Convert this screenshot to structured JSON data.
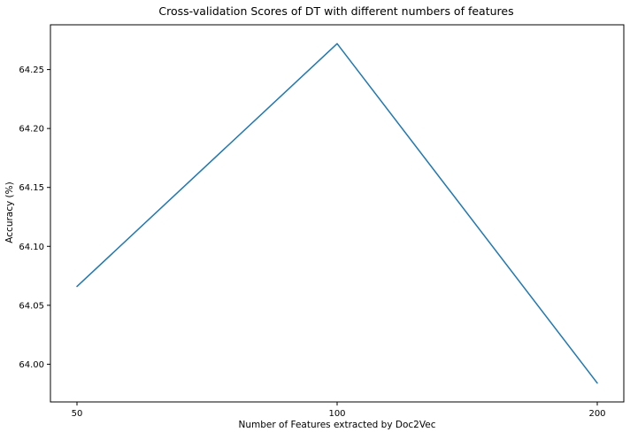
{
  "chart_data": {
    "type": "line",
    "title": "Cross-validation Scores of DT with different numbers of features",
    "xlabel": "Number of Features extracted by Doc2Vec",
    "ylabel": "Accuracy (%)",
    "categories": [
      "50",
      "100",
      "200"
    ],
    "series": [
      {
        "values": [
          64.066,
          64.272,
          63.984
        ]
      }
    ],
    "ylim": [
      63.968,
      64.288
    ],
    "yticks": [
      64.0,
      64.05,
      64.1,
      64.15,
      64.2,
      64.25
    ],
    "ytick_labels": [
      "64.00",
      "64.05",
      "64.10",
      "64.15",
      "64.20",
      "64.25"
    ],
    "grid": false,
    "line_color": "#1f77b4"
  }
}
